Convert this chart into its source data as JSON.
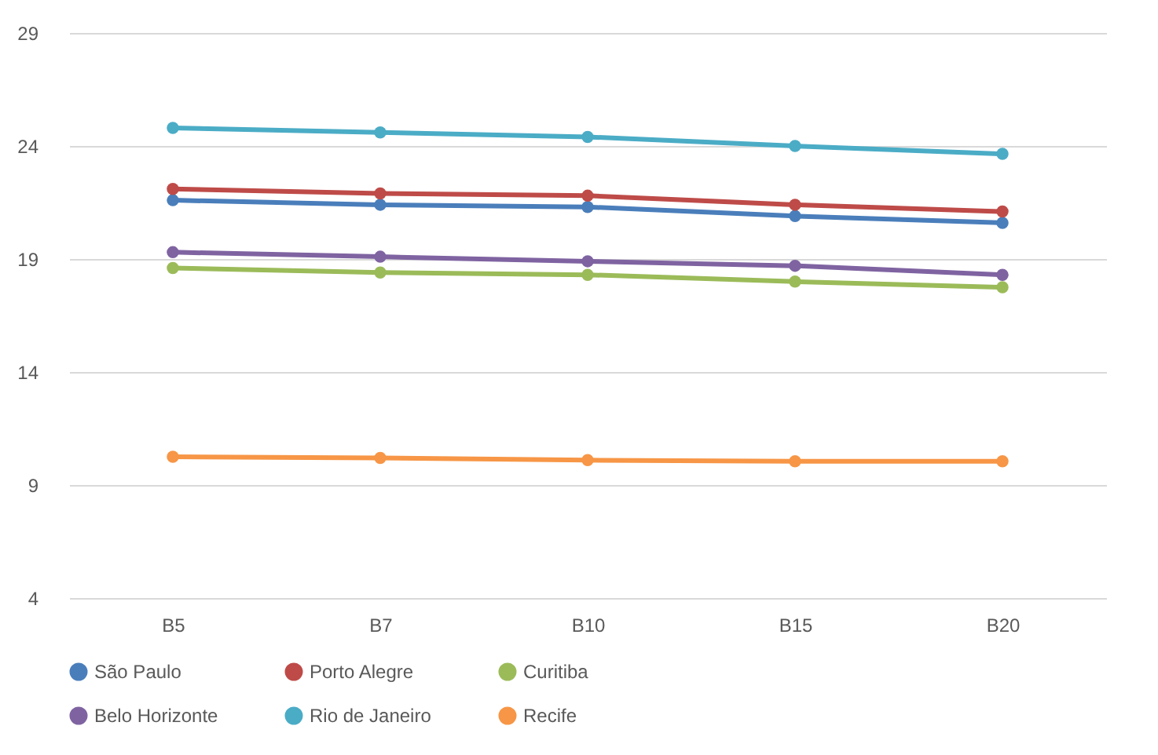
{
  "chart_data": {
    "type": "line",
    "categories": [
      "B5",
      "B7",
      "B10",
      "B15",
      "B20"
    ],
    "series": [
      {
        "name": "São Paulo",
        "color": "#4a7ebb",
        "values": [
          21.6,
          21.4,
          21.3,
          20.9,
          20.6
        ]
      },
      {
        "name": "Porto Alegre",
        "color": "#be4b48",
        "values": [
          22.1,
          21.9,
          21.8,
          21.4,
          21.1
        ]
      },
      {
        "name": "Curitiba",
        "color": "#9bbb59",
        "values": [
          18.6,
          18.4,
          18.3,
          18.0,
          17.75
        ]
      },
      {
        "name": "Belo Horizonte",
        "color": "#7f63a1",
        "values": [
          19.3,
          19.1,
          18.9,
          18.7,
          18.3
        ]
      },
      {
        "name": "Rio de Janeiro",
        "color": "#4bacc6",
        "values": [
          24.8,
          24.6,
          24.4,
          24.0,
          23.65
        ]
      },
      {
        "name": "Recife",
        "color": "#f79646",
        "values": [
          10.25,
          10.2,
          10.1,
          10.05,
          10.05
        ]
      }
    ],
    "ylim": [
      4,
      29
    ],
    "yticks": [
      4,
      9,
      14,
      19,
      24,
      29
    ],
    "grid": "y",
    "legend": "bottom",
    "marker": "circle",
    "line_style": "solid"
  }
}
